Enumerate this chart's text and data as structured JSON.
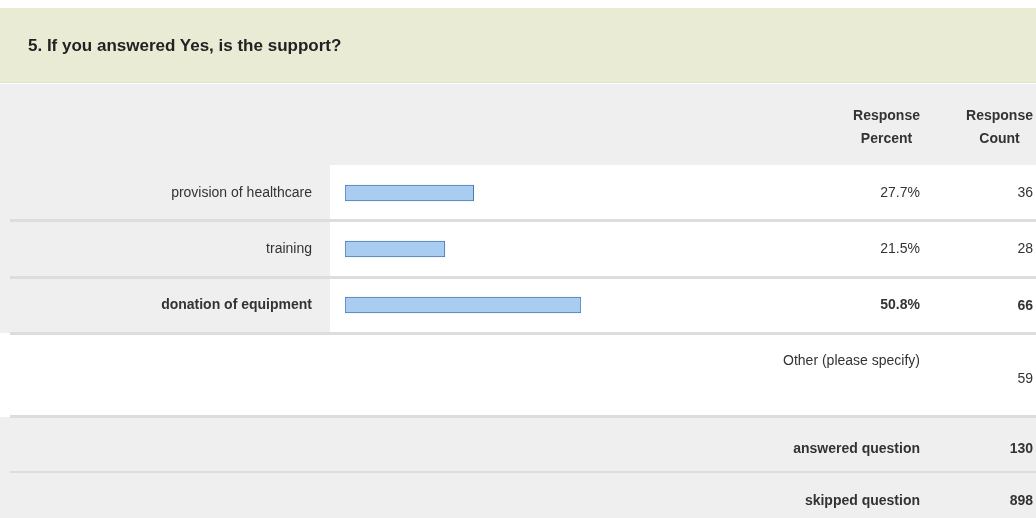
{
  "chart_data": {
    "type": "bar",
    "orientation": "horizontal",
    "title": "5. If you answered Yes, is the support?",
    "categories": [
      "provision of healthcare",
      "training",
      "donation of equipment"
    ],
    "values": [
      27.7,
      21.5,
      50.8
    ],
    "color": "#a8cdf1",
    "value_labels": [
      "27.7%",
      "21.5%",
      "50.8%"
    ],
    "tick_labels": "y",
    "legend": false,
    "annotations": [
      "Response Percent",
      "Response Count",
      "36",
      "28",
      "66",
      "Other (please specify)",
      "59",
      "answered question",
      "130",
      "skipped question",
      "898"
    ]
  }
}
